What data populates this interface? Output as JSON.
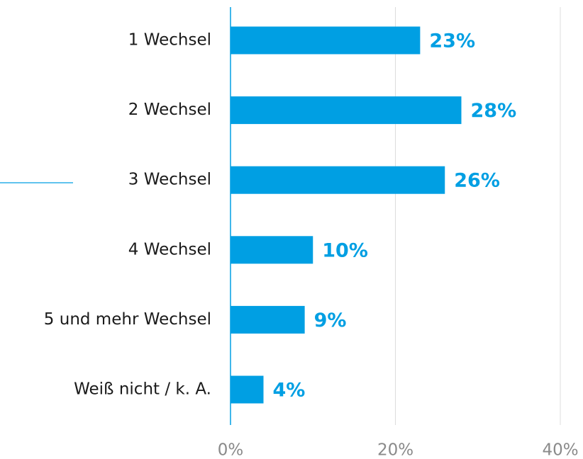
{
  "chart_data": {
    "type": "bar",
    "orientation": "horizontal",
    "categories": [
      "1 Wechsel",
      "2 Wechsel",
      "3 Wechsel",
      "4 Wechsel",
      "5 und mehr Wechsel",
      "Weiß nicht / k. A."
    ],
    "values": [
      23,
      28,
      26,
      10,
      9,
      4
    ],
    "value_labels": [
      "23%",
      "28%",
      "26%",
      "10%",
      "9%",
      "4%"
    ],
    "color": "#009fe3",
    "xlim": [
      0,
      40
    ],
    "xticks": [
      {
        "value": 0,
        "label": "0%"
      },
      {
        "value": 20,
        "label": "20%"
      },
      {
        "value": 40,
        "label": "40%"
      }
    ],
    "grid": true
  }
}
